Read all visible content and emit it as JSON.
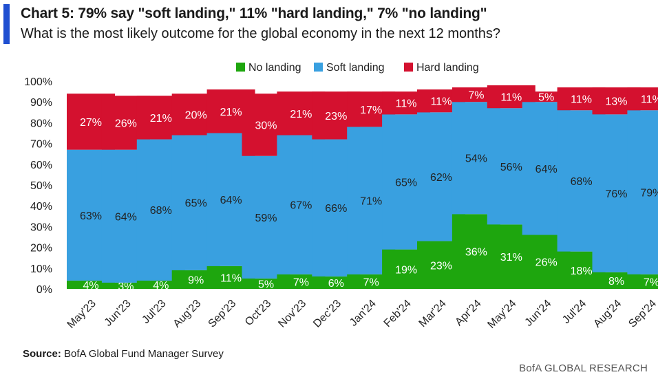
{
  "title": "Chart 5: 79% say \"soft landing,\" 11% \"hard landing,\" 7% \"no landing\"",
  "subtitle": "What is the most likely outcome for the global economy in the next 12 months?",
  "source_label": "Source:",
  "source_text": "BofA Global Fund Manager Survey",
  "footer": "BofA GLOBAL RESEARCH",
  "colors": {
    "no_landing": "#1ea60e",
    "soft_landing": "#39a0e0",
    "hard_landing": "#d4112f",
    "accent": "#1f4fd1"
  },
  "chart_data": {
    "type": "bar",
    "stacked": true,
    "categories": [
      "May'23",
      "Jun'23",
      "Jul'23",
      "Aug'23",
      "Sep'23",
      "Oct'23",
      "Nov'23",
      "Dec'23",
      "Jan'24",
      "Feb'24",
      "Mar'24",
      "Apr'24",
      "May'24",
      "Jun'24",
      "Jul'24",
      "Aug'24",
      "Sep'24"
    ],
    "series": [
      {
        "name": "No landing",
        "key": "no_landing",
        "values": [
          4,
          3,
          4,
          9,
          11,
          5,
          7,
          6,
          7,
          19,
          23,
          36,
          31,
          26,
          18,
          8,
          7
        ]
      },
      {
        "name": "Soft landing",
        "key": "soft_landing",
        "values": [
          63,
          64,
          68,
          65,
          64,
          59,
          67,
          66,
          71,
          65,
          62,
          54,
          56,
          64,
          68,
          76,
          79
        ]
      },
      {
        "name": "Hard landing",
        "key": "hard_landing",
        "values": [
          27,
          26,
          21,
          20,
          21,
          30,
          21,
          23,
          17,
          11,
          11,
          7,
          11,
          5,
          11,
          13,
          11
        ]
      }
    ],
    "ylim": [
      0,
      100
    ],
    "yticks": [
      0,
      10,
      20,
      30,
      40,
      50,
      60,
      70,
      80,
      90,
      100
    ],
    "ytick_labels": [
      "0%",
      "10%",
      "20%",
      "30%",
      "40%",
      "50%",
      "60%",
      "70%",
      "80%",
      "90%",
      "100%"
    ],
    "legend_position": "top-center"
  }
}
